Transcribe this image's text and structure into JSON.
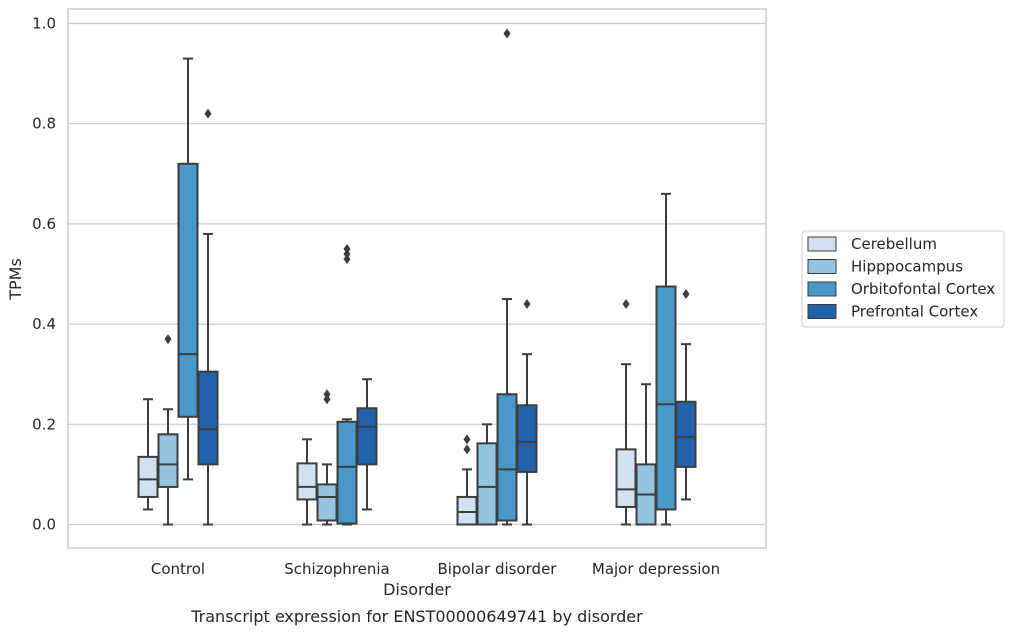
{
  "chart_data": {
    "type": "boxplot",
    "xlabel": "Disorder",
    "ylabel": "TPMs",
    "caption": "Transcript expression for ENST00000649741 by disorder",
    "ylim": [
      -0.045,
      1.03
    ],
    "yticks": [
      "0.0",
      "0.2",
      "0.4",
      "0.6",
      "0.8",
      "1.0"
    ],
    "ytick_values": [
      0.0,
      0.2,
      0.4,
      0.6,
      0.8,
      1.0
    ],
    "grid": "horizontal",
    "legend_position": "right",
    "categories": [
      "Control",
      "Schizophrenia",
      "Bipolar disorder",
      "Major depression"
    ],
    "series": [
      {
        "name": "Cerebellum",
        "color": "#d0e1f2",
        "boxes": [
          {
            "whislo": 0.03,
            "q1": 0.055,
            "med": 0.09,
            "q3": 0.135,
            "whishi": 0.25,
            "fliers": []
          },
          {
            "whislo": 0.0,
            "q1": 0.05,
            "med": 0.075,
            "q3": 0.122,
            "whishi": 0.17,
            "fliers": []
          },
          {
            "whislo": 0.0,
            "q1": 0.0,
            "med": 0.025,
            "q3": 0.055,
            "whishi": 0.11,
            "fliers": [
              0.15,
              0.17
            ]
          },
          {
            "whislo": 0.0,
            "q1": 0.035,
            "med": 0.07,
            "q3": 0.15,
            "whishi": 0.32,
            "fliers": [
              0.44
            ]
          }
        ]
      },
      {
        "name": "Hipppocampus",
        "color": "#94c4df",
        "boxes": [
          {
            "whislo": 0.0,
            "q1": 0.075,
            "med": 0.12,
            "q3": 0.18,
            "whishi": 0.23,
            "fliers": [
              0.37
            ]
          },
          {
            "whislo": 0.0,
            "q1": 0.008,
            "med": 0.055,
            "q3": 0.08,
            "whishi": 0.12,
            "fliers": [
              0.25,
              0.26
            ]
          },
          {
            "whislo": 0.0,
            "q1": 0.0,
            "med": 0.075,
            "q3": 0.162,
            "whishi": 0.2,
            "fliers": []
          },
          {
            "whislo": 0.0,
            "q1": 0.0,
            "med": 0.06,
            "q3": 0.12,
            "whishi": 0.28,
            "fliers": []
          }
        ]
      },
      {
        "name": "Orbitofontal Cortex",
        "color": "#4a98c9",
        "boxes": [
          {
            "whislo": 0.09,
            "q1": 0.215,
            "med": 0.34,
            "q3": 0.72,
            "whishi": 0.93,
            "fliers": []
          },
          {
            "whislo": 0.0,
            "q1": 0.002,
            "med": 0.115,
            "q3": 0.205,
            "whishi": 0.21,
            "fliers": [
              0.53,
              0.54,
              0.55
            ]
          },
          {
            "whislo": 0.0,
            "q1": 0.008,
            "med": 0.11,
            "q3": 0.26,
            "whishi": 0.45,
            "fliers": [
              0.98
            ]
          },
          {
            "whislo": 0.0,
            "q1": 0.03,
            "med": 0.24,
            "q3": 0.475,
            "whishi": 0.66,
            "fliers": []
          }
        ]
      },
      {
        "name": "Prefrontal Cortex",
        "color": "#2163aa",
        "boxes": [
          {
            "whislo": 0.0,
            "q1": 0.12,
            "med": 0.19,
            "q3": 0.305,
            "whishi": 0.58,
            "fliers": [
              0.82
            ]
          },
          {
            "whislo": 0.03,
            "q1": 0.12,
            "med": 0.195,
            "q3": 0.232,
            "whishi": 0.29,
            "fliers": []
          },
          {
            "whislo": 0.0,
            "q1": 0.105,
            "med": 0.165,
            "q3": 0.238,
            "whishi": 0.34,
            "fliers": [
              0.44
            ]
          },
          {
            "whislo": 0.05,
            "q1": 0.115,
            "med": 0.175,
            "q3": 0.245,
            "whishi": 0.36,
            "fliers": [
              0.46
            ]
          }
        ]
      }
    ]
  }
}
